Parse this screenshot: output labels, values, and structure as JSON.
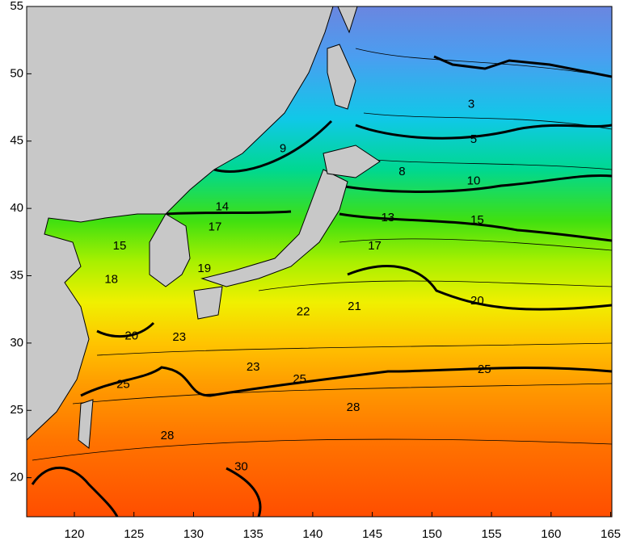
{
  "chart_data": {
    "type": "contour-map",
    "xlim": [
      116,
      165.1
    ],
    "ylim": [
      17.1,
      55
    ],
    "xticks": [
      120,
      125,
      130,
      135,
      140,
      145,
      150,
      155,
      160,
      165
    ],
    "yticks": [
      20,
      25,
      30,
      35,
      40,
      45,
      50,
      55
    ],
    "contour_labels": [
      {
        "value": 3,
        "x": 153.3,
        "y": 47.7
      },
      {
        "value": 5,
        "x": 153.5,
        "y": 45.1
      },
      {
        "value": 8,
        "x": 147.5,
        "y": 42.7
      },
      {
        "value": 9,
        "x": 137.5,
        "y": 44.4
      },
      {
        "value": 10,
        "x": 153.5,
        "y": 42.0
      },
      {
        "value": 13,
        "x": 146.3,
        "y": 39.3
      },
      {
        "value": 14,
        "x": 132.4,
        "y": 40.1
      },
      {
        "value": 15,
        "x": 153.8,
        "y": 39.1
      },
      {
        "value": 15,
        "x": 123.8,
        "y": 37.2
      },
      {
        "value": 17,
        "x": 131.8,
        "y": 38.6
      },
      {
        "value": 17,
        "x": 145.2,
        "y": 37.2
      },
      {
        "value": 18,
        "x": 123.1,
        "y": 34.7
      },
      {
        "value": 19,
        "x": 130.9,
        "y": 35.5
      },
      {
        "value": 20,
        "x": 124.8,
        "y": 30.5
      },
      {
        "value": 20,
        "x": 153.8,
        "y": 33.1
      },
      {
        "value": 21,
        "x": 143.5,
        "y": 32.7
      },
      {
        "value": 22,
        "x": 139.2,
        "y": 32.3
      },
      {
        "value": 23,
        "x": 128.8,
        "y": 30.4
      },
      {
        "value": 23,
        "x": 135.0,
        "y": 28.2
      },
      {
        "value": 25,
        "x": 124.1,
        "y": 26.9
      },
      {
        "value": 25,
        "x": 138.9,
        "y": 27.3
      },
      {
        "value": 25,
        "x": 154.4,
        "y": 28.0
      },
      {
        "value": 28,
        "x": 143.4,
        "y": 25.2
      },
      {
        "value": 28,
        "x": 127.8,
        "y": 23.1
      },
      {
        "value": 30,
        "x": 134.0,
        "y": 20.8
      }
    ]
  }
}
